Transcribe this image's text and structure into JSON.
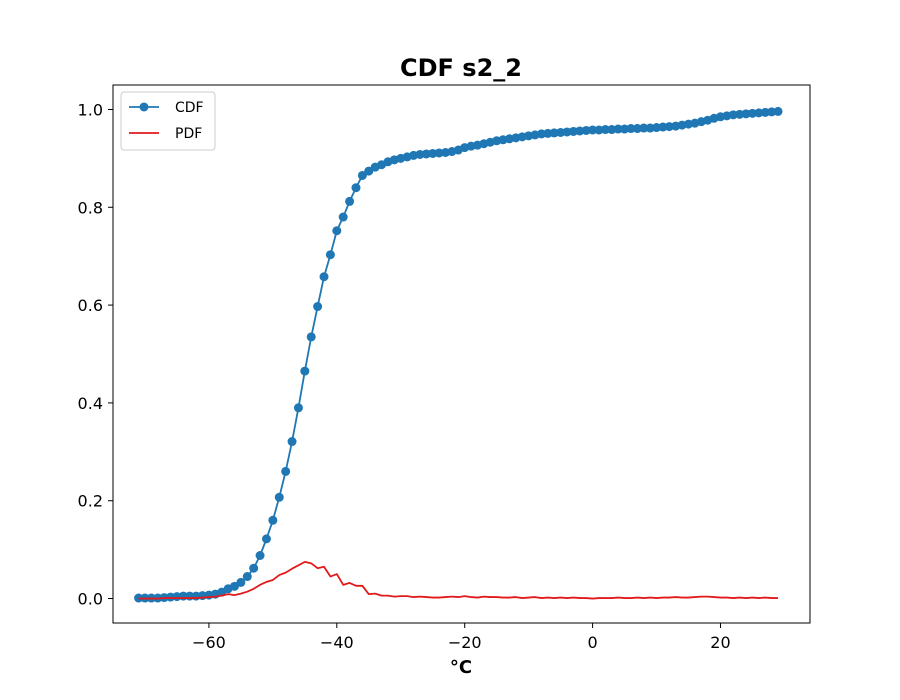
{
  "chart_data": {
    "type": "line",
    "title": "CDF s2_2",
    "xlabel": "°C",
    "ylabel": "",
    "xlim": [
      -75,
      34
    ],
    "ylim": [
      -0.05,
      1.05
    ],
    "xticks": [
      -60,
      -40,
      -20,
      0,
      20
    ],
    "xtick_labels": [
      "−60",
      "−40",
      "−20",
      "0",
      "20"
    ],
    "yticks": [
      0.0,
      0.2,
      0.4,
      0.6,
      0.8,
      1.0
    ],
    "ytick_labels": [
      "0.0",
      "0.2",
      "0.4",
      "0.6",
      "0.8",
      "1.0"
    ],
    "grid": false,
    "legend_position": "top-left",
    "series": [
      {
        "name": "CDF",
        "color": "#1f77b4",
        "marker": "circle",
        "x": [
          -71,
          -70,
          -69,
          -68,
          -67,
          -66,
          -65,
          -64,
          -63,
          -62,
          -61,
          -60,
          -59,
          -58,
          -57,
          -56,
          -55,
          -54,
          -53,
          -52,
          -51,
          -50,
          -49,
          -48,
          -47,
          -46,
          -45,
          -44,
          -43,
          -42,
          -41,
          -40,
          -39,
          -38,
          -37,
          -36,
          -35,
          -34,
          -33,
          -32,
          -31,
          -30,
          -29,
          -28,
          -27,
          -26,
          -25,
          -24,
          -23,
          -22,
          -21,
          -20,
          -19,
          -18,
          -17,
          -16,
          -15,
          -14,
          -13,
          -12,
          -11,
          -10,
          -9,
          -8,
          -7,
          -6,
          -5,
          -4,
          -3,
          -2,
          -1,
          0,
          1,
          2,
          3,
          4,
          5,
          6,
          7,
          8,
          9,
          10,
          11,
          12,
          13,
          14,
          15,
          16,
          17,
          18,
          19,
          20,
          21,
          22,
          23,
          24,
          25,
          26,
          27,
          28,
          29
        ],
        "values": [
          0.001,
          0.001,
          0.001,
          0.001,
          0.002,
          0.003,
          0.004,
          0.005,
          0.005,
          0.005,
          0.006,
          0.007,
          0.009,
          0.013,
          0.02,
          0.025,
          0.033,
          0.045,
          0.062,
          0.088,
          0.122,
          0.16,
          0.207,
          0.26,
          0.321,
          0.39,
          0.465,
          0.535,
          0.597,
          0.658,
          0.703,
          0.752,
          0.78,
          0.812,
          0.84,
          0.865,
          0.874,
          0.882,
          0.887,
          0.893,
          0.897,
          0.9,
          0.903,
          0.906,
          0.908,
          0.909,
          0.91,
          0.911,
          0.912,
          0.914,
          0.917,
          0.922,
          0.925,
          0.927,
          0.93,
          0.933,
          0.936,
          0.938,
          0.94,
          0.942,
          0.944,
          0.946,
          0.948,
          0.95,
          0.951,
          0.952,
          0.953,
          0.954,
          0.955,
          0.956,
          0.957,
          0.958,
          0.958,
          0.959,
          0.959,
          0.96,
          0.96,
          0.961,
          0.961,
          0.962,
          0.962,
          0.963,
          0.964,
          0.965,
          0.966,
          0.968,
          0.97,
          0.972,
          0.975,
          0.978,
          0.982,
          0.985,
          0.987,
          0.989,
          0.99,
          0.991,
          0.992,
          0.993,
          0.994,
          0.995,
          0.996
        ]
      },
      {
        "name": "PDF",
        "color": "#e31a1c",
        "marker": "none",
        "x": [
          -71,
          -70,
          -69,
          -68,
          -67,
          -66,
          -65,
          -64,
          -63,
          -62,
          -61,
          -60,
          -59,
          -58,
          -57,
          -56,
          -55,
          -54,
          -53,
          -52,
          -51,
          -50,
          -49,
          -48,
          -47,
          -46,
          -45,
          -44,
          -43,
          -42,
          -41,
          -40,
          -39,
          -38,
          -37,
          -36,
          -35,
          -34,
          -33,
          -32,
          -31,
          -30,
          -29,
          -28,
          -27,
          -26,
          -25,
          -24,
          -23,
          -22,
          -21,
          -20,
          -19,
          -18,
          -17,
          -16,
          -15,
          -14,
          -13,
          -12,
          -11,
          -10,
          -9,
          -8,
          -7,
          -6,
          -5,
          -4,
          -3,
          -2,
          -1,
          0,
          1,
          2,
          3,
          4,
          5,
          6,
          7,
          8,
          9,
          10,
          11,
          12,
          13,
          14,
          15,
          16,
          17,
          18,
          19,
          20,
          21,
          22,
          23,
          24,
          25,
          26,
          27,
          28,
          29
        ],
        "values": [
          0.0,
          0.0,
          0.0,
          0.0,
          0.001,
          0.001,
          0.001,
          0.001,
          0.001,
          0.001,
          0.002,
          0.003,
          0.004,
          0.006,
          0.009,
          0.007,
          0.01,
          0.014,
          0.02,
          0.028,
          0.034,
          0.038,
          0.048,
          0.053,
          0.061,
          0.068,
          0.075,
          0.072,
          0.062,
          0.065,
          0.045,
          0.05,
          0.028,
          0.032,
          0.026,
          0.026,
          0.009,
          0.01,
          0.006,
          0.006,
          0.004,
          0.005,
          0.005,
          0.003,
          0.004,
          0.003,
          0.002,
          0.002,
          0.003,
          0.004,
          0.003,
          0.005,
          0.003,
          0.002,
          0.004,
          0.003,
          0.003,
          0.002,
          0.002,
          0.003,
          0.001,
          0.002,
          0.003,
          0.001,
          0.002,
          0.001,
          0.002,
          0.001,
          0.002,
          0.001,
          0.001,
          0.0,
          0.001,
          0.001,
          0.001,
          0.002,
          0.001,
          0.001,
          0.002,
          0.001,
          0.002,
          0.001,
          0.002,
          0.002,
          0.003,
          0.002,
          0.002,
          0.003,
          0.004,
          0.004,
          0.003,
          0.002,
          0.002,
          0.001,
          0.002,
          0.001,
          0.002,
          0.001,
          0.002,
          0.001,
          0.001
        ]
      }
    ]
  }
}
